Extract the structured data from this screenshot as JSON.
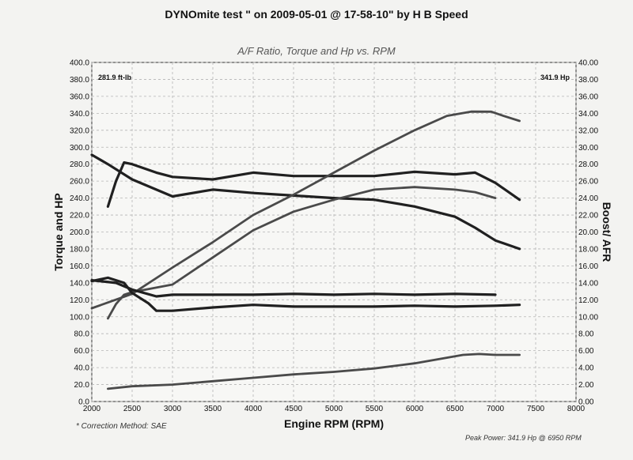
{
  "header": {
    "title": "DYNOmite test \" on 2009-05-01 @ 17-58-10\" by H B Speed",
    "subtitle": "A/F Ratio, Torque and Hp vs. RPM"
  },
  "footer": {
    "correction_note": "* Correction Method: SAE",
    "peak_power_note": "Peak Power: 341.9 Hp @ 6950 RPM"
  },
  "colors": {
    "background": "#f3f3f1",
    "grid": "#b5b5b5",
    "curve_dark": "#202020",
    "curve_mid": "#4a4a4a"
  },
  "chart_data": {
    "type": "line",
    "xlabel": "Engine RPM (RPM)",
    "ylabel_left": "Torque and HP",
    "ylabel_right": "Boost/ AFR",
    "xlim": [
      2000,
      8000
    ],
    "ylim_left": [
      0,
      400
    ],
    "ylim_right": [
      0,
      40
    ],
    "grid": true,
    "x_ticks": [
      "2000",
      "2500",
      "3000",
      "3500",
      "4000",
      "4500",
      "5000",
      "5500",
      "6000",
      "6500",
      "7000",
      "7500",
      "8000"
    ],
    "y_ticks_left": [
      "0.0",
      "20.0",
      "40.0",
      "60.0",
      "80.0",
      "100.0",
      "120.0",
      "140.0",
      "160.0",
      "180.0",
      "200.0",
      "220.0",
      "240.0",
      "260.0",
      "280.0",
      "300.0",
      "320.0",
      "340.0",
      "360.0",
      "380.0",
      "400.0"
    ],
    "y_ticks_right": [
      "0.00",
      "2.00",
      "4.00",
      "6.00",
      "8.00",
      "10.00",
      "12.00",
      "14.00",
      "16.00",
      "18.00",
      "20.00",
      "22.00",
      "24.00",
      "26.00",
      "28.00",
      "30.00",
      "32.00",
      "34.00",
      "36.00",
      "38.00",
      "40.00"
    ],
    "annotations": {
      "peak_torque": "281.9 ft-lb",
      "peak_hp": "341.9 Hp"
    },
    "series": [
      {
        "axis": "left",
        "style": "dark",
        "x": [
          2000,
          2200,
          2500,
          3000,
          3500,
          4000,
          4500,
          5000,
          5500,
          6000,
          6500,
          6750,
          7000,
          7300
        ],
        "values": [
          291,
          280,
          262,
          242,
          250,
          246,
          243,
          240,
          238,
          230,
          218,
          205,
          190,
          180
        ]
      },
      {
        "axis": "left",
        "style": "dark",
        "x": [
          2200,
          2300,
          2400,
          2500,
          2800,
          3000,
          3500,
          4000,
          4500,
          5000,
          5500,
          6000,
          6500,
          6750,
          7000,
          7300
        ],
        "values": [
          230,
          260,
          282,
          280,
          270,
          265,
          262,
          270,
          266,
          266,
          266,
          271,
          268,
          270,
          258,
          238
        ]
      },
      {
        "axis": "left",
        "style": "mid",
        "x": [
          2200,
          2300,
          2400,
          2500,
          3000,
          3500,
          4000,
          4500,
          5000,
          5500,
          6000,
          6500,
          6750,
          7000
        ],
        "values": [
          98,
          115,
          126,
          129,
          138,
          170,
          202,
          224,
          238,
          250,
          253,
          250,
          247,
          240
        ]
      },
      {
        "axis": "left",
        "style": "mid",
        "x": [
          2000,
          2500,
          3000,
          3500,
          4000,
          4500,
          5000,
          5500,
          6000,
          6400,
          6700,
          6950,
          7100,
          7300
        ],
        "values": [
          110,
          127,
          158,
          188,
          220,
          244,
          270,
          296,
          320,
          337,
          342,
          341.9,
          337,
          331
        ]
      },
      {
        "axis": "right",
        "style": "dark",
        "x": [
          2000,
          2200,
          2400,
          2500,
          2700,
          2800,
          3000,
          3500,
          4000,
          4500,
          5000,
          5500,
          6000,
          6500,
          7000,
          7300
        ],
        "values": [
          14.2,
          14.6,
          14.0,
          12.8,
          11.6,
          10.7,
          10.7,
          11.1,
          11.4,
          11.2,
          11.2,
          11.2,
          11.3,
          11.2,
          11.3,
          11.4
        ]
      },
      {
        "axis": "right",
        "style": "dark",
        "x": [
          2000,
          2300,
          2500,
          2800,
          3000,
          3500,
          4000,
          4500,
          5000,
          5500,
          6000,
          6500,
          7000
        ],
        "values": [
          14.3,
          14.0,
          13.2,
          12.4,
          12.6,
          12.6,
          12.6,
          12.7,
          12.6,
          12.7,
          12.6,
          12.7,
          12.6
        ]
      },
      {
        "axis": "right",
        "style": "mid",
        "x": [
          2200,
          2500,
          3000,
          3500,
          4000,
          4500,
          5000,
          5500,
          6000,
          6300,
          6600,
          6800,
          7000,
          7300
        ],
        "values": [
          1.5,
          1.8,
          2.0,
          2.4,
          2.8,
          3.2,
          3.5,
          3.9,
          4.5,
          5.0,
          5.5,
          5.6,
          5.5,
          5.5
        ]
      }
    ]
  }
}
